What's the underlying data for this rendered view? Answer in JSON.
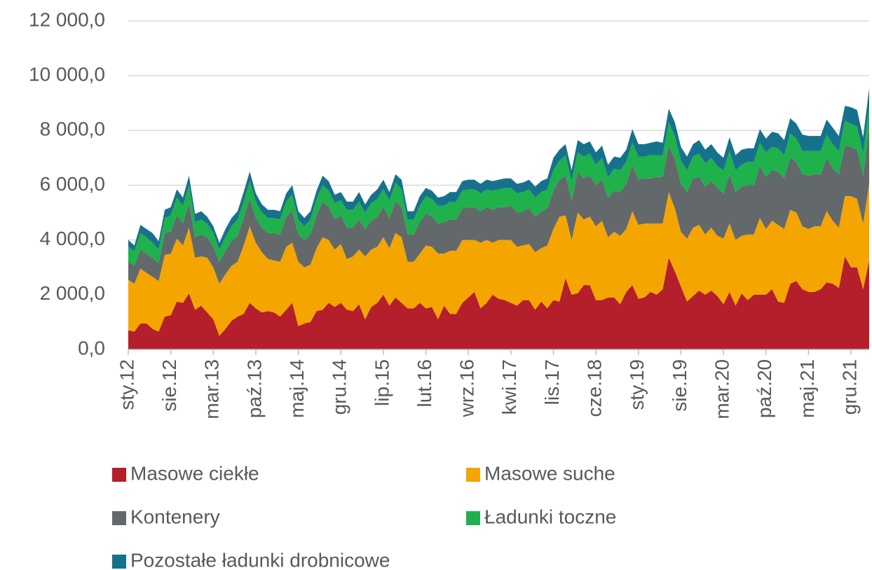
{
  "chart_data": {
    "type": "stacked_area",
    "categories": [
      "sty.12",
      null,
      null,
      null,
      null,
      null,
      null,
      "sie.12",
      null,
      null,
      null,
      null,
      null,
      null,
      "mar.13",
      null,
      null,
      null,
      null,
      null,
      null,
      "paź.13",
      null,
      null,
      null,
      null,
      null,
      null,
      "maj.14",
      null,
      null,
      null,
      null,
      null,
      null,
      "gru.14",
      null,
      null,
      null,
      null,
      null,
      null,
      "lip.15",
      null,
      null,
      null,
      null,
      null,
      null,
      "lut.16",
      null,
      null,
      null,
      null,
      null,
      null,
      "wrz.16",
      null,
      null,
      null,
      null,
      null,
      null,
      "kwi.17",
      null,
      null,
      null,
      null,
      null,
      null,
      "lis.17",
      null,
      null,
      null,
      null,
      null,
      null,
      "cze.18",
      null,
      null,
      null,
      null,
      null,
      null,
      "sty.19",
      null,
      null,
      null,
      null,
      null,
      null,
      "sie.19",
      null,
      null,
      null,
      null,
      null,
      null,
      "mar.20",
      null,
      null,
      null,
      null,
      null,
      null,
      "paź.20",
      null,
      null,
      null,
      null,
      null,
      null,
      "maj.21",
      null,
      null,
      null,
      null,
      null,
      null,
      "gru.21",
      null,
      null,
      null
    ],
    "series": [
      {
        "name": "Masowe ciekłe",
        "color": "#b41f2b",
        "values": [
          700,
          650,
          950,
          950,
          750,
          650,
          1200,
          1250,
          1750,
          1700,
          2050,
          1450,
          1600,
          1350,
          1100,
          500,
          750,
          1050,
          1200,
          1300,
          1700,
          1500,
          1350,
          1400,
          1350,
          1200,
          1450,
          1700,
          850,
          950,
          1000,
          1400,
          1450,
          1700,
          1550,
          1700,
          1450,
          1400,
          1650,
          1100,
          1550,
          1700,
          2000,
          1600,
          1900,
          1700,
          1500,
          1500,
          1700,
          1500,
          1550,
          1100,
          1600,
          1300,
          1300,
          1700,
          1900,
          2100,
          1500,
          1700,
          2000,
          1850,
          1800,
          1700,
          1600,
          1800,
          1800,
          1450,
          1750,
          1500,
          1800,
          1750,
          2600,
          2000,
          2050,
          2350,
          2350,
          1800,
          1800,
          1900,
          1900,
          1650,
          2100,
          2350,
          1850,
          1900,
          2100,
          2000,
          2200,
          3350,
          2850,
          2300,
          1750,
          1950,
          2150,
          2000,
          2150,
          1950,
          1650,
          2100,
          1600,
          2050,
          1800,
          2000,
          2000,
          2000,
          2200,
          1750,
          1700,
          2400,
          2500,
          2200,
          2100,
          2100,
          2200,
          2450,
          2400,
          2250,
          3400,
          3000,
          3000,
          2200,
          3250
        ]
      },
      {
        "name": "Masowe suche",
        "color": "#f5a500",
        "values": [
          1850,
          1750,
          2000,
          1850,
          1900,
          1850,
          2250,
          2250,
          2300,
          2100,
          2400,
          1900,
          1800,
          2000,
          1900,
          1900,
          2000,
          2000,
          2000,
          2500,
          2800,
          2400,
          2200,
          1900,
          1900,
          2000,
          2300,
          2200,
          2350,
          2050,
          2100,
          2300,
          2650,
          2300,
          2100,
          2150,
          1850,
          2000,
          2000,
          2300,
          2100,
          2050,
          2100,
          2100,
          2350,
          2400,
          1700,
          1700,
          1800,
          2300,
          2200,
          2400,
          1900,
          2300,
          2300,
          2300,
          2100,
          1900,
          2400,
          2300,
          1900,
          2150,
          2200,
          2300,
          2150,
          2000,
          2050,
          2100,
          1950,
          2300,
          2600,
          3100,
          2300,
          2000,
          2950,
          2400,
          2500,
          2700,
          2900,
          2200,
          2400,
          2500,
          2300,
          2700,
          2700,
          2700,
          2500,
          2600,
          2400,
          2400,
          2300,
          2000,
          2300,
          2500,
          2400,
          2200,
          2300,
          2200,
          2400,
          2500,
          2400,
          2100,
          2400,
          2200,
          2800,
          2400,
          2500,
          2800,
          2700,
          2700,
          2500,
          2300,
          2300,
          2400,
          2300,
          2600,
          2300,
          2200,
          2200,
          2600,
          2500,
          2400,
          2800
        ]
      },
      {
        "name": "Kontenery",
        "color": "#63686b",
        "values": [
          650,
          650,
          700,
          700,
          700,
          650,
          800,
          800,
          850,
          800,
          900,
          750,
          800,
          750,
          750,
          800,
          850,
          900,
          950,
          1000,
          1000,
          900,
          900,
          950,
          1000,
          1000,
          1100,
          1150,
          1000,
          1000,
          1100,
          1200,
          1300,
          1200,
          1100,
          1050,
          1150,
          1050,
          1100,
          1000,
          1050,
          1100,
          1100,
          1100,
          1150,
          1100,
          1000,
          1000,
          1150,
          1150,
          1100,
          1100,
          1150,
          1150,
          1150,
          1150,
          1200,
          1200,
          1150,
          1200,
          1200,
          1200,
          1200,
          1250,
          1250,
          1250,
          1300,
          1300,
          1350,
          1350,
          1400,
          1350,
          1450,
          1450,
          1450,
          1500,
          1500,
          1500,
          1500,
          1450,
          1500,
          1600,
          1650,
          1700,
          1650,
          1650,
          1650,
          1700,
          1700,
          1700,
          1800,
          1750,
          1700,
          1800,
          1750,
          1750,
          1700,
          1750,
          1650,
          1800,
          1750,
          1800,
          1800,
          1800,
          1900,
          1900,
          1850,
          1950,
          1850,
          1900,
          1850,
          1900,
          1950,
          1900,
          1900,
          1950,
          1900,
          1950,
          1850,
          1800,
          1800,
          1750,
          2000
        ]
      },
      {
        "name": "Ładunki toczne",
        "color": "#1fb14b",
        "values": [
          550,
          550,
          600,
          600,
          550,
          500,
          550,
          600,
          650,
          650,
          650,
          550,
          550,
          500,
          500,
          450,
          500,
          550,
          600,
          600,
          650,
          600,
          550,
          550,
          550,
          550,
          550,
          600,
          550,
          500,
          550,
          600,
          600,
          600,
          600,
          550,
          650,
          650,
          650,
          600,
          650,
          650,
          650,
          650,
          700,
          650,
          550,
          550,
          600,
          650,
          650,
          650,
          600,
          650,
          650,
          650,
          650,
          650,
          650,
          650,
          700,
          650,
          700,
          650,
          700,
          700,
          700,
          700,
          700,
          700,
          750,
          700,
          750,
          700,
          750,
          800,
          800,
          750,
          800,
          750,
          800,
          800,
          800,
          800,
          850,
          800,
          850,
          800,
          800,
          850,
          850,
          850,
          800,
          800,
          850,
          850,
          850,
          800,
          850,
          850,
          800,
          800,
          850,
          850,
          850,
          900,
          850,
          850,
          850,
          900,
          850,
          850,
          900,
          850,
          850,
          850,
          900,
          850,
          900,
          850,
          850,
          800,
          850
        ]
      },
      {
        "name": "Pozostałe ładunki drobnicowe",
        "color": "#16728c",
        "values": [
          250,
          200,
          300,
          300,
          350,
          300,
          300,
          300,
          300,
          300,
          350,
          300,
          300,
          250,
          250,
          250,
          300,
          300,
          300,
          350,
          350,
          300,
          300,
          300,
          300,
          300,
          300,
          350,
          300,
          300,
          300,
          300,
          350,
          350,
          300,
          300,
          300,
          300,
          350,
          300,
          300,
          350,
          350,
          300,
          300,
          350,
          300,
          300,
          350,
          300,
          300,
          300,
          350,
          350,
          350,
          350,
          350,
          350,
          350,
          350,
          350,
          350,
          350,
          350,
          350,
          350,
          350,
          400,
          400,
          400,
          450,
          400,
          400,
          400,
          450,
          450,
          450,
          450,
          450,
          450,
          450,
          450,
          450,
          500,
          450,
          450,
          450,
          500,
          450,
          500,
          500,
          500,
          500,
          450,
          500,
          500,
          500,
          500,
          450,
          500,
          550,
          550,
          500,
          500,
          500,
          500,
          550,
          550,
          550,
          550,
          550,
          600,
          550,
          550,
          550,
          550,
          600,
          550,
          550,
          600,
          600,
          600,
          650
        ]
      }
    ],
    "ylim": [
      0,
      12000
    ],
    "yticks": [
      {
        "value": 0,
        "label": "0,0"
      },
      {
        "value": 2000,
        "label": "2 000,0"
      },
      {
        "value": 4000,
        "label": "4 000,0"
      },
      {
        "value": 6000,
        "label": "6 000,0"
      },
      {
        "value": 8000,
        "label": "8 000,0"
      },
      {
        "value": 10000,
        "label": "10 000,0"
      },
      {
        "value": 12000,
        "label": "12 000,0"
      }
    ],
    "grid": true,
    "legend": "bottom"
  }
}
